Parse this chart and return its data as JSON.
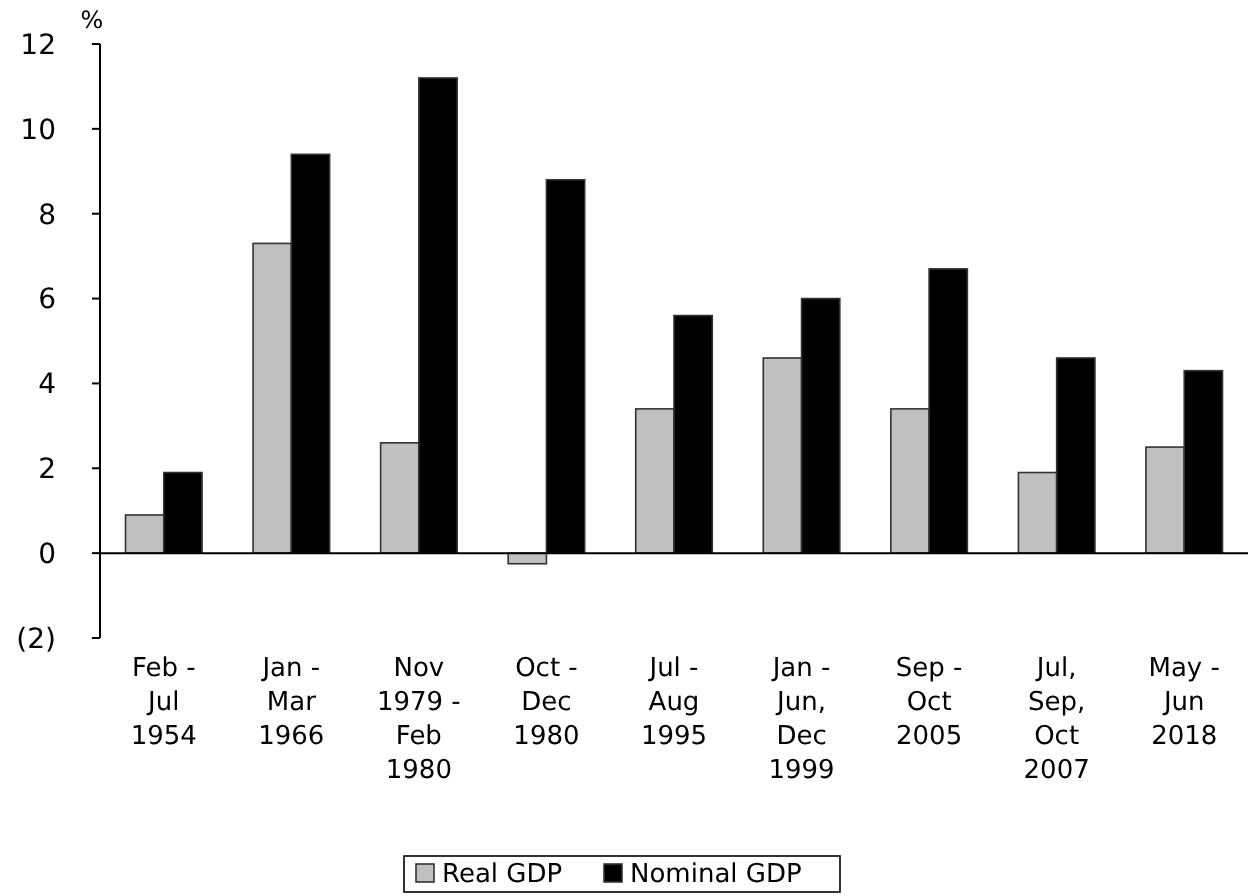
{
  "chart_data": {
    "type": "bar",
    "ylabel": "%",
    "categories": [
      "Feb -\nJul\n1954",
      "Jan -\nMar\n1966",
      "Nov\n1979 -\nFeb\n1980",
      "Oct -\nDec\n1980",
      "Jul -\nAug\n1995",
      "Jan -\nJun,\nDec\n1999",
      "Sep -\nOct\n2005",
      "Jul,\nSep,\nOct\n2007",
      "May -\nJun\n2018"
    ],
    "series": [
      {
        "name": "Real GDP",
        "color": "#c0c0c0",
        "values": [
          0.9,
          7.3,
          2.6,
          -0.25,
          3.4,
          4.6,
          3.4,
          1.9,
          2.5
        ]
      },
      {
        "name": "Nominal GDP",
        "color": "#000000",
        "values": [
          1.9,
          9.4,
          11.2,
          8.8,
          5.6,
          6.0,
          6.7,
          4.6,
          4.3
        ]
      }
    ],
    "ylim": [
      -2,
      12
    ],
    "yticks": [
      {
        "value": -2,
        "label": "(2)"
      },
      0,
      2,
      4,
      6,
      8,
      10,
      12
    ],
    "legend": "bottom"
  }
}
